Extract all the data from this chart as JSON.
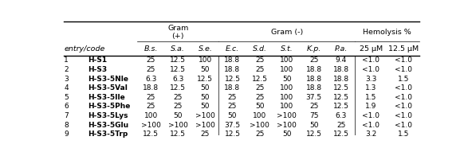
{
  "col_headers": [
    "entry/code",
    "",
    "B.s.",
    "S.a.",
    "S.e.",
    "",
    "E.c.",
    "S.d.",
    "S.t.",
    "K.p.",
    "P.a.",
    "",
    "25 μM",
    "12.5 μM"
  ],
  "rows": [
    [
      "1",
      "H-S1",
      "25",
      "12.5",
      "100",
      "",
      "18.8",
      "25",
      "100",
      "25",
      "9.4",
      "",
      "<1.0",
      "<1.0"
    ],
    [
      "2",
      "H-S3",
      "25",
      "12.5",
      "50",
      "",
      "18.8",
      "25",
      "100",
      "18.8",
      "18.8",
      "",
      "<1.0",
      "<1.0"
    ],
    [
      "3",
      "H-S3-5Nle",
      "6.3",
      "6.3",
      "12.5",
      "",
      "12.5",
      "12.5",
      "50",
      "18.8",
      "18.8",
      "",
      "3.3",
      "1.5"
    ],
    [
      "4",
      "H-S3-5Val",
      "18.8",
      "12.5",
      "50",
      "",
      "18.8",
      "25",
      "100",
      "18.8",
      "12.5",
      "",
      "1.3",
      "<1.0"
    ],
    [
      "5",
      "H-S3-5Ile",
      "25",
      "25",
      "50",
      "",
      "25",
      "25",
      "100",
      "37.5",
      "12.5",
      "",
      "1.5",
      "<1.0"
    ],
    [
      "6",
      "H-S3-5Phe",
      "25",
      "25",
      "50",
      "",
      "25",
      "50",
      "100",
      "25",
      "12.5",
      "",
      "1.9",
      "<1.0"
    ],
    [
      "7",
      "H-S3-5Lys",
      "100",
      "50",
      ">100",
      "",
      "50",
      "100",
      ">100",
      "75",
      "6.3",
      "",
      "<1.0",
      "<1.0"
    ],
    [
      "8",
      "H-S3-5Glu",
      ">100",
      ">100",
      ">100",
      "",
      "37.5",
      ">100",
      ">100",
      "50",
      "25",
      "",
      "<1.0",
      "<1.0"
    ],
    [
      "9",
      "H-S3-5Trp",
      "12.5",
      "12.5",
      "25",
      "",
      "12.5",
      "25",
      "50",
      "12.5",
      "12.5",
      "",
      "3.2",
      "1.5"
    ]
  ],
  "gram_pos_label": "Gram\n(+)",
  "gram_neg_label": "Gram (-)",
  "hemo_label": "Hemolysis %",
  "figsize": [
    5.87,
    1.91
  ],
  "dpi": 100,
  "fs": 6.5,
  "fs_header": 6.8
}
